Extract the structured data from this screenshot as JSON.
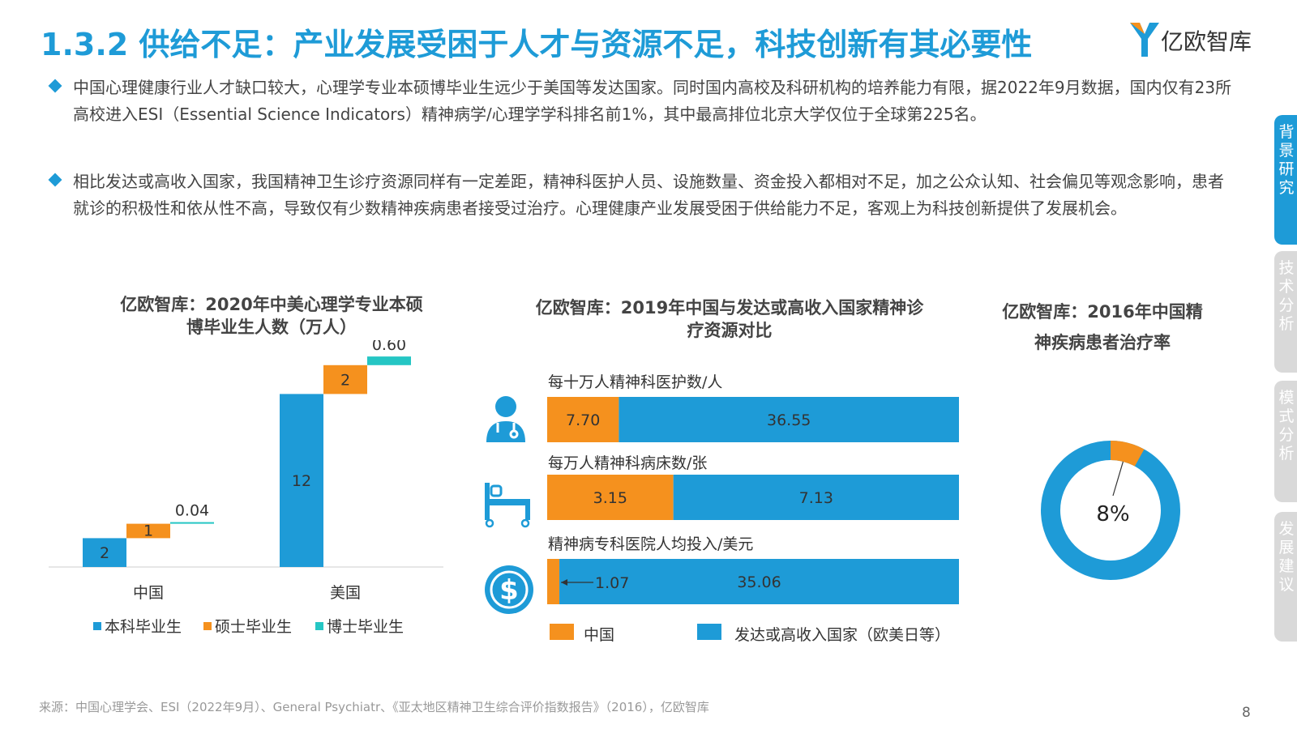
{
  "title": "1.3.2 供给不足：产业发展受困于人才与资源不足，科技创新有其必要性",
  "logo": {
    "text": "亿欧智库"
  },
  "bullets": [
    "中国心理健康行业人才缺口较大，心理学专业本硕博毕业生远少于美国等发达国家。同时国内高校及科研机构的培养能力有限，据2022年9月数据，国内仅有23所高校进入ESI（Essential Science Indicators）精神病学/心理学学科排名前1%，其中最高排位北京大学仅位于全球第225名。",
    "相比发达或高收入国家，我国精神卫生诊疗资源同样有一定差距，精神科医护人员、设施数量、资金投入都相对不足，加之公众认知、社会偏见等观念影响，患者就诊的积极性和依从性不高，导致仅有少数精神疾病患者接受过治疗。心理健康产业发展受困于供给能力不足，客观上为科技创新提供了发展机会。"
  ],
  "side_tabs": [
    {
      "label": "背景研究",
      "active": true
    },
    {
      "label": "技术分析",
      "active": false
    },
    {
      "label": "模式分析",
      "active": false
    },
    {
      "label": "发展建议",
      "active": false
    }
  ],
  "colors": {
    "blue": "#1e9bd7",
    "orange": "#f5911e",
    "teal": "#25c6c4",
    "title": "#1e9bd7"
  },
  "chart_data": [
    {
      "type": "bar",
      "stacked": true,
      "title": "亿欧智库：2020年中美心理学专业本硕博毕业生人数（万人）",
      "categories": [
        "中国",
        "美国"
      ],
      "series": [
        {
          "name": "本科毕业生",
          "values": [
            2,
            12
          ],
          "labels": [
            "2",
            "12"
          ]
        },
        {
          "name": "硕士毕业生",
          "values": [
            1,
            2
          ],
          "labels": [
            "1",
            "2"
          ]
        },
        {
          "name": "博士毕业生",
          "values": [
            0.04,
            0.6
          ],
          "labels": [
            "0.04",
            "0.60"
          ]
        }
      ]
    },
    {
      "type": "bar",
      "orientation": "horizontal",
      "stacked": true,
      "title": "亿欧智库：2019年中国与发达或高收入国家精神诊疗资源对比",
      "categories": [
        "每十万人精神科医护数/人",
        "每万人精神科病床数/张",
        "精神病专科医院人均投入/美元"
      ],
      "series": [
        {
          "name": "中国",
          "values": [
            7.7,
            3.15,
            1.07
          ],
          "labels": [
            "7.70",
            "3.15",
            "1.07"
          ]
        },
        {
          "name": "发达或高收入国家（欧美日等）",
          "values": [
            36.55,
            7.13,
            35.06
          ],
          "labels": [
            "36.55",
            "7.13",
            "35.06"
          ]
        }
      ],
      "icons": [
        "doctor-icon",
        "hospital-bed-icon",
        "dollar-coin-icon"
      ]
    },
    {
      "type": "pie",
      "variant": "donut",
      "title": "亿欧智库：2016年中国精神疾病患者治疗率",
      "values": [
        8,
        92
      ],
      "label": "8%"
    }
  ],
  "footer": "来源：中国心理学会、ESI（2022年9月）、General Psychiatr、《亚太地区精神卫生综合评价指数报告》（2016），亿欧智库",
  "page_number": "8"
}
